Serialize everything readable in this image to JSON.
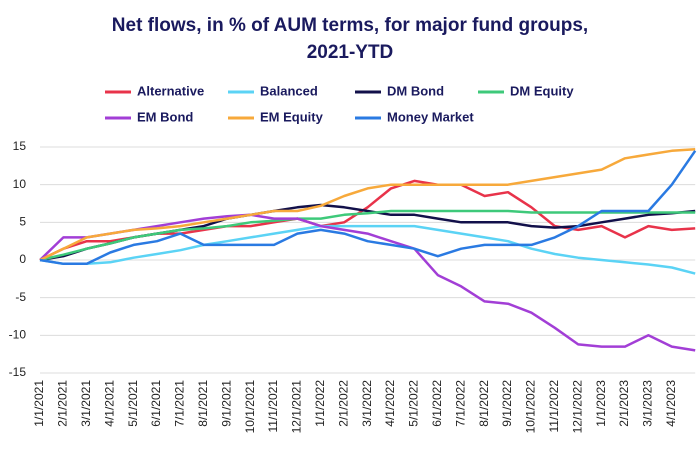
{
  "chart_data": {
    "type": "line",
    "title": "Net flows, in % of AUM terms, for major fund groups, 2021-YTD",
    "categories": [
      "1/1/2021",
      "2/1/2021",
      "3/1/2021",
      "4/1/2021",
      "5/1/2021",
      "6/1/2021",
      "7/1/2021",
      "8/1/2021",
      "9/1/2021",
      "10/1/2021",
      "11/1/2021",
      "12/1/2021",
      "1/1/2022",
      "2/1/2022",
      "3/1/2022",
      "4/1/2022",
      "5/1/2022",
      "6/1/2022",
      "7/1/2022",
      "8/1/2022",
      "9/1/2022",
      "10/1/2022",
      "11/1/2022",
      "12/1/2022",
      "1/1/2023",
      "2/1/2023",
      "3/1/2023",
      "4/1/2023",
      null
    ],
    "series": [
      {
        "name": "Alternative",
        "color": "#e8334a",
        "values": [
          0,
          1.5,
          2.5,
          2.5,
          3,
          3.5,
          3.5,
          4,
          4.5,
          4.5,
          5,
          5.5,
          4.5,
          5,
          7,
          9.5,
          10.5,
          10,
          10,
          8.5,
          9,
          7,
          4.5,
          4,
          4.5,
          3,
          4.5,
          4,
          4.2
        ]
      },
      {
        "name": "Balanced",
        "color": "#5bd3f5",
        "values": [
          0,
          -0.5,
          -0.5,
          -0.3,
          0.3,
          0.8,
          1.3,
          2,
          2.5,
          3,
          3.5,
          4,
          4.5,
          4.5,
          4.5,
          4.5,
          4.5,
          4,
          3.5,
          3,
          2.5,
          1.5,
          0.8,
          0.3,
          0,
          -0.3,
          -0.6,
          -1,
          -1.8
        ]
      },
      {
        "name": "DM Bond",
        "color": "#12104a",
        "values": [
          0,
          0.5,
          1.5,
          2.2,
          3,
          3.5,
          4,
          4.5,
          5.5,
          6,
          6.5,
          7,
          7.3,
          7,
          6.5,
          6,
          6,
          5.5,
          5,
          5,
          5,
          4.5,
          4.3,
          4.5,
          5,
          5.5,
          6,
          6.2,
          6.5
        ]
      },
      {
        "name": "DM Equity",
        "color": "#3ec97a",
        "values": [
          0,
          0.7,
          1.5,
          2.2,
          3,
          3.5,
          4,
          4.2,
          4.5,
          5,
          5.2,
          5.5,
          5.5,
          6,
          6.2,
          6.5,
          6.5,
          6.5,
          6.5,
          6.5,
          6.5,
          6.3,
          6.3,
          6.3,
          6.3,
          6.3,
          6.3,
          6.3,
          6.3
        ]
      },
      {
        "name": "EM Bond",
        "color": "#a23ed6",
        "values": [
          0,
          3,
          3,
          3.5,
          4,
          4.5,
          5,
          5.5,
          5.8,
          6,
          5.5,
          5.5,
          4.5,
          4,
          3.5,
          2.5,
          1.5,
          -2,
          -3.5,
          -5.5,
          -5.8,
          -7,
          -9,
          -11.2,
          -11.5,
          -11.5,
          -10,
          -11.5,
          -12
        ]
      },
      {
        "name": "EM Equity",
        "color": "#f7a93b",
        "values": [
          0,
          1.5,
          3,
          3.5,
          4,
          4.2,
          4.5,
          5,
          5.5,
          6,
          6.5,
          6.5,
          7.2,
          8.5,
          9.5,
          10,
          10,
          10,
          10,
          10,
          10,
          10.5,
          11,
          11.5,
          12,
          13.5,
          14,
          14.5,
          14.7
        ]
      },
      {
        "name": "Money Market",
        "color": "#2a7ae2",
        "values": [
          0,
          -0.5,
          -0.5,
          1,
          2,
          2.5,
          3.5,
          2,
          2,
          2,
          2,
          3.5,
          4,
          3.5,
          2.5,
          2,
          1.5,
          0.5,
          1.5,
          2,
          2,
          2,
          3,
          4.5,
          6.5,
          6.5,
          6.5,
          10,
          14.5
        ]
      }
    ],
    "ylim": [
      -15,
      15
    ],
    "yticks": [
      -15,
      -10,
      -5,
      0,
      5,
      10,
      15
    ],
    "grid": true
  }
}
